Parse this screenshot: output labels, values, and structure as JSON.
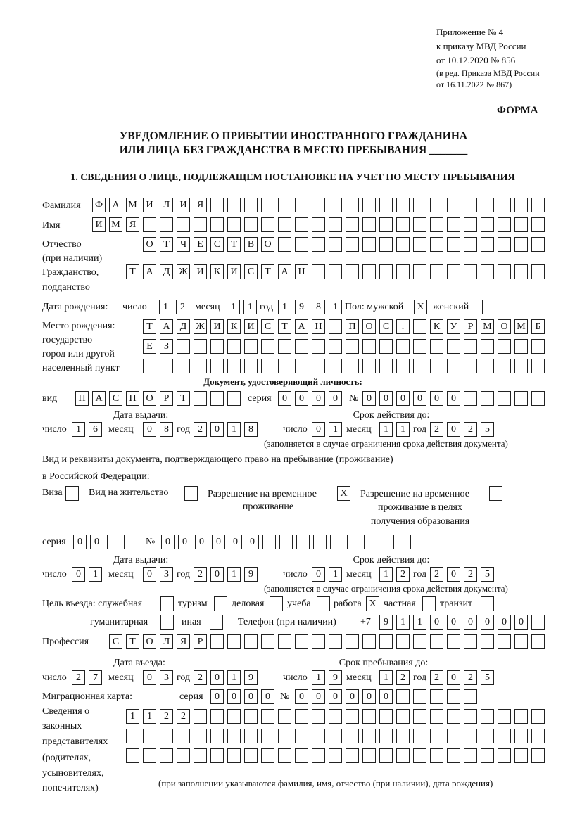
{
  "header": {
    "appendix": "Приложение № 4",
    "order": "к приказу МВД России",
    "order_date": "от 10.12.2020 № 856",
    "revision_1": "(в ред. Приказа МВД России",
    "revision_2": "от 16.11.2022 № 867)",
    "form_label": "ФОРМА",
    "title_1": "УВЕДОМЛЕНИЕ О ПРИБЫТИИ ИНОСТРАННОГО ГРАЖДАНИНА",
    "title_2": "ИЛИ ЛИЦА БЕЗ ГРАЖДАНСТВА В МЕСТО ПРЕБЫВАНИЯ _______",
    "section_1": "1. СВЕДЕНИЯ О ЛИЦЕ, ПОДЛЕЖАЩЕМ ПОСТАНОВКЕ НА УЧЕТ ПО МЕСТУ ПРЕБЫВАНИЯ"
  },
  "labels": {
    "surname": "Фамилия",
    "name": "Имя",
    "patronymic_1": "Отчество",
    "patronymic_2": "(при наличии)",
    "citizenship_1": "Гражданство,",
    "citizenship_2": "подданство",
    "birth_date": "Дата рождения:",
    "day": "число",
    "month": "месяц",
    "year": "год",
    "sex_male": "Пол: мужской",
    "sex_female": "женский",
    "birthplace_1": "Место рождения:",
    "birthplace_2": "государство",
    "birthplace_3": "город или другой",
    "birthplace_4": "населенный пункт",
    "id_doc": "Документ, удостоверяющий личность:",
    "kind": "вид",
    "series": "серия",
    "number": "№",
    "issue_date": "Дата выдачи:",
    "valid_until": "Срок действия до:",
    "validity_note": "(заполняется в случае ограничения срока действия документа)",
    "right_doc_1": "Вид и реквизиты документа, подтверждающего право на пребывание (проживание)",
    "right_doc_2": "в Российской Федерации:",
    "visa": "Виза",
    "residence_permit": "Вид на жительство",
    "temp_permit_1": "Разрешение на временное",
    "temp_permit_2": "проживание",
    "temp_edu_1": "Разрешение на временное",
    "temp_edu_2": "проживание в целях",
    "temp_edu_3": "получения образования",
    "purpose": "Цель въезда: служебная",
    "tourism": "туризм",
    "business": "деловая",
    "study": "учеба",
    "work": "работа",
    "private": "частная",
    "transit": "транзит",
    "humanitarian": "гуманитарная",
    "other": "иная",
    "phone": "Телефон (при наличии)",
    "phone_prefix": "+7",
    "profession": "Профессия",
    "entry_date": "Дата въезда:",
    "stay_until": "Срок пребывания до:",
    "migration_card": "Миграционная карта:",
    "reps_1": "Сведения о",
    "reps_2": "законных",
    "reps_3": "представителях",
    "reps_4": "(родителях,",
    "reps_5": "усыновителях,",
    "reps_6": "попечителях)",
    "reps_note": "(при заполнении указываются фамилия, имя, отчество (при наличии), дата рождения)"
  },
  "values": {
    "surname": "ФАМИЛИЯ",
    "name": "ИМЯ",
    "patronymic": "ОТЧЕСТВО",
    "citizenship": "ТАДЖИКИСТАН",
    "birth_day": "12",
    "birth_month": "11",
    "birth_year": "1981",
    "sex_male": "X",
    "sex_female": "",
    "birthplace_1": "ТАДЖИКИСТАН ПОС. КУРМОМБ",
    "birthplace_2": "ЕЗ",
    "birthplace_3": "",
    "id_kind": "ПАСПОРТ",
    "id_series": "0000",
    "id_number": "000000",
    "id_issue_day": "16",
    "id_issue_month": "08",
    "id_issue_year": "2018",
    "id_valid_day": "01",
    "id_valid_month": "11",
    "id_valid_year": "2025",
    "visa": "",
    "residence_permit": "",
    "temp_permit": "X",
    "temp_edu": "",
    "right_series": "00",
    "right_number": "000000",
    "right_issue_day": "01",
    "right_issue_month": "03",
    "right_issue_year": "2019",
    "right_valid_day": "01",
    "right_valid_month": "12",
    "right_valid_year": "2025",
    "purpose_service": "",
    "purpose_tourism": "",
    "purpose_business": "",
    "purpose_study": "",
    "purpose_work": "X",
    "purpose_private": "",
    "purpose_transit": "",
    "purpose_humanitarian": "",
    "purpose_other": "",
    "phone": "911000000",
    "profession": "СТОЛЯР",
    "entry_day": "27",
    "entry_month": "03",
    "entry_year": "2019",
    "stay_day": "19",
    "stay_month": "12",
    "stay_year": "2025",
    "mc_series": "0000",
    "mc_number": "000000",
    "reps_1": "1122",
    "reps_2": "",
    "reps_3": ""
  }
}
